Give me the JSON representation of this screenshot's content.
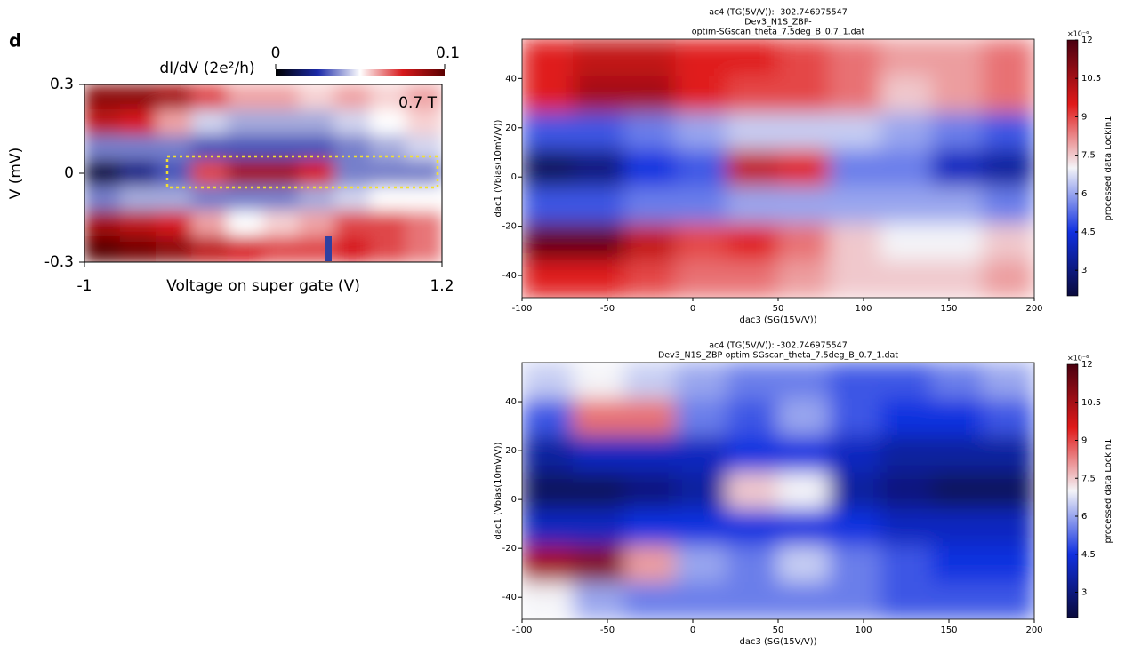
{
  "chart_data": [
    {
      "type": "heatmap",
      "panel_label": "d",
      "colorbar_title": "dI/dV (2e²/h)",
      "annotation": "0.7 T",
      "xlabel": "Voltage on super gate (V)",
      "ylabel": "V (mV)",
      "xlim": [
        -1,
        1.2
      ],
      "xticks": [
        -1,
        1.2
      ],
      "ylim": [
        -0.3,
        0.3
      ],
      "yticks": [
        0.3,
        0,
        -0.3
      ],
      "clim": [
        0,
        0.1
      ],
      "cticks": [
        0,
        0.1
      ],
      "colormap": [
        "#000000",
        "#1b2aa8",
        "#ffffff",
        "#d7191c",
        "#5a0000"
      ],
      "z": [
        [
          0.09,
          0.09,
          0.085,
          0.07,
          0.06,
          0.06,
          0.055,
          0.06,
          0.055,
          0.06
        ],
        [
          0.08,
          0.075,
          0.06,
          0.045,
          0.04,
          0.04,
          0.04,
          0.045,
          0.05,
          0.055
        ],
        [
          0.035,
          0.035,
          0.035,
          0.03,
          0.03,
          0.03,
          0.03,
          0.035,
          0.04,
          0.045
        ],
        [
          0.01,
          0.02,
          0.03,
          0.07,
          0.085,
          0.085,
          0.075,
          0.035,
          0.035,
          0.035
        ],
        [
          0.035,
          0.04,
          0.04,
          0.035,
          0.035,
          0.035,
          0.04,
          0.045,
          0.05,
          0.05
        ],
        [
          0.085,
          0.08,
          0.075,
          0.06,
          0.05,
          0.055,
          0.06,
          0.07,
          0.07,
          0.065
        ],
        [
          0.1,
          0.095,
          0.09,
          0.08,
          0.075,
          0.07,
          0.07,
          0.075,
          0.07,
          0.065
        ]
      ]
    },
    {
      "type": "heatmap",
      "title": [
        "ac4 (TG(5V/V)): -302.746975547",
        "Dev3_N1S_ZBP-",
        "optim-SGscan_theta_7.5deg_B_0.7_1.dat"
      ],
      "xlabel": "dac3 (SG(15V/V))",
      "ylabel": "dac1 (Vbias(10mV/V))",
      "colorbar_label": "processed data Lockin1",
      "colorbar_multiplier": "×10⁻⁶",
      "xlim": [
        -100,
        200
      ],
      "xticks": [
        -100,
        -50,
        0,
        50,
        100,
        150,
        200
      ],
      "ylim": [
        -49,
        56
      ],
      "yticks": [
        -40,
        -20,
        0,
        20,
        40
      ],
      "clim": [
        2,
        12
      ],
      "cticks": [
        3,
        4.5,
        6,
        7.5,
        9,
        10.5,
        12
      ],
      "colormap": [
        "#0a0a3c",
        "#1030e0",
        "#f4f4f8",
        "#e01a1a",
        "#4a0010"
      ],
      "z": [
        [
          9.5,
          10,
          10,
          9.5,
          9.5,
          9,
          8.5,
          8,
          8,
          8.5
        ],
        [
          9.5,
          10.5,
          10.5,
          9.5,
          9,
          9,
          8.5,
          7.5,
          8,
          8.5
        ],
        [
          5,
          5,
          5.5,
          6,
          6.5,
          6.5,
          6.5,
          6,
          5.5,
          5
        ],
        [
          2.5,
          3,
          4.5,
          5,
          10,
          9.5,
          5.5,
          5.5,
          4,
          3.5
        ],
        [
          5,
          5,
          5.5,
          5.5,
          6,
          6,
          6,
          6,
          6,
          5.5
        ],
        [
          11.5,
          11.5,
          10,
          9,
          9.5,
          8.5,
          7.5,
          7,
          7,
          7.5
        ],
        [
          9.5,
          9.5,
          9,
          8.5,
          8.5,
          8,
          7.5,
          7.5,
          7.5,
          8
        ]
      ]
    },
    {
      "type": "heatmap",
      "title": [
        "ac4 (TG(5V/V)): -302.746975547",
        "Dev3_N1S_ZBP-optim-SGscan_theta_7.5deg_B_0.7_1.dat"
      ],
      "xlabel": "dac3 (SG(15V/V))",
      "ylabel": "dac1 (Vbias(10mV/V))",
      "colorbar_label": "processed data Lockin1",
      "colorbar_multiplier": "×10⁻⁶",
      "xlim": [
        -100,
        200
      ],
      "xticks": [
        -100,
        -50,
        0,
        50,
        100,
        150,
        200
      ],
      "ylim": [
        -49,
        56
      ],
      "yticks": [
        -40,
        -20,
        0,
        20,
        40
      ],
      "clim": [
        2,
        12
      ],
      "cticks": [
        3,
        4.5,
        6,
        7.5,
        9,
        10.5,
        12
      ],
      "colormap": [
        "#0a0a3c",
        "#1030e0",
        "#f4f4f8",
        "#e01a1a",
        "#4a0010"
      ],
      "z": [
        [
          6.5,
          7,
          6.5,
          6,
          5.5,
          5.5,
          5,
          5,
          5.5,
          6
        ],
        [
          5,
          8.5,
          8.5,
          5.5,
          5,
          6,
          5,
          4.5,
          4.5,
          5
        ],
        [
          3.5,
          4,
          4,
          4,
          4.5,
          4.5,
          4,
          3.5,
          3.5,
          3.5
        ],
        [
          2.5,
          2.5,
          3,
          3.5,
          7.5,
          7,
          3.5,
          3,
          2.5,
          2.5
        ],
        [
          4,
          4,
          4.5,
          4.5,
          4.5,
          4.5,
          4.5,
          4,
          4,
          4
        ],
        [
          10.5,
          11,
          8,
          6,
          5.5,
          6.5,
          5.5,
          5,
          4.5,
          4.5
        ],
        [
          7,
          6,
          5.5,
          5.5,
          5.5,
          5.5,
          5.5,
          5,
          5,
          5
        ]
      ]
    }
  ]
}
